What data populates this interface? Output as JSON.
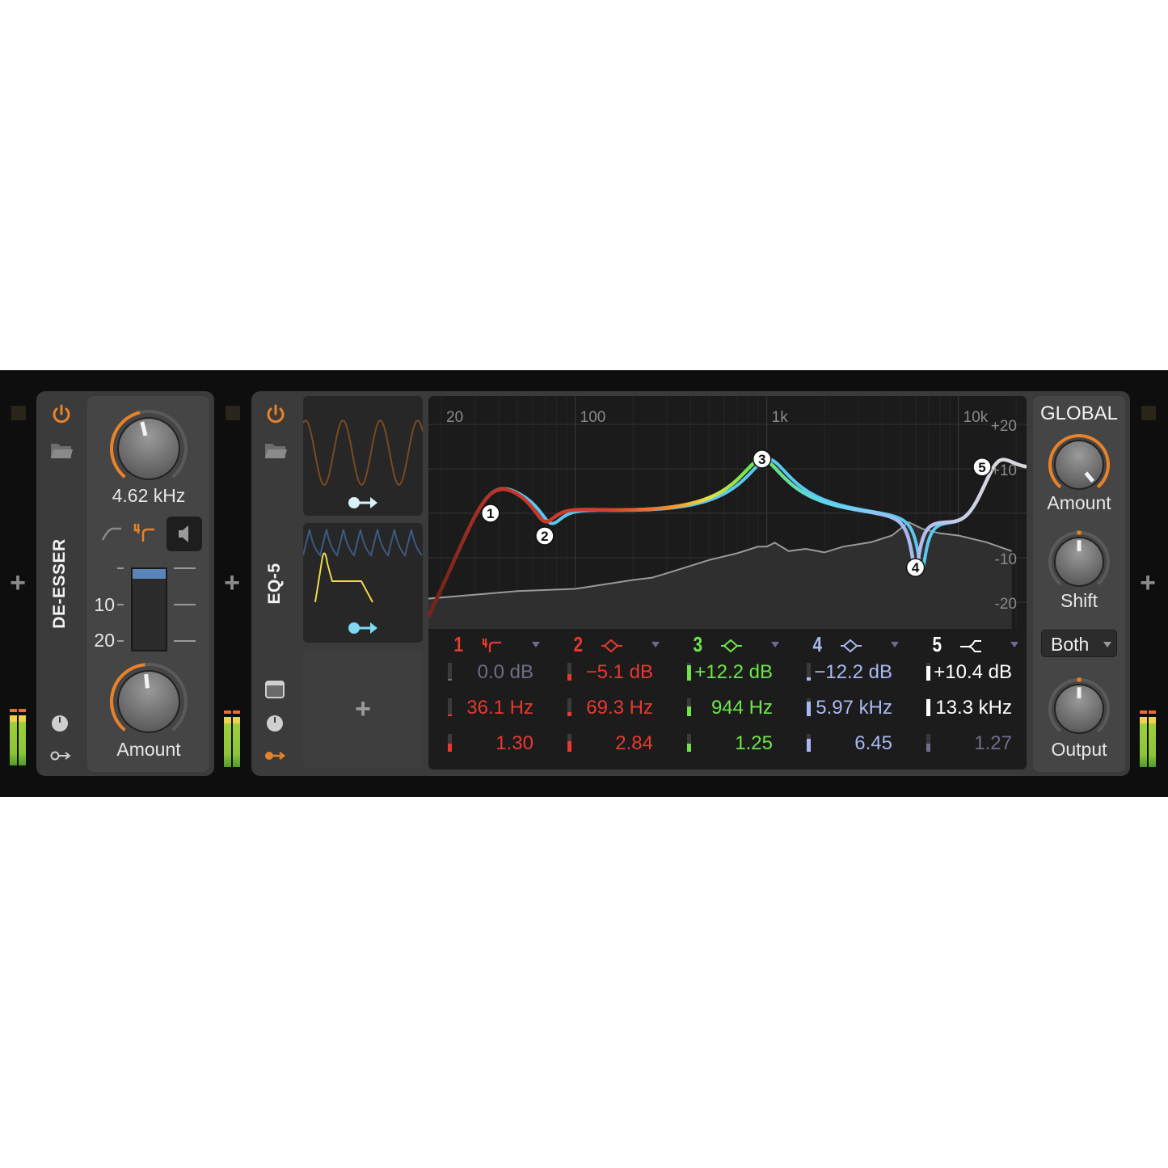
{
  "add_label": "+",
  "deesser": {
    "title": "DE-ESSER",
    "frequency": "4.62 kHz",
    "frequency_knob": 0.45,
    "amount_label": "Amount",
    "amount_knob": 0.48,
    "scale": [
      "10",
      "20"
    ],
    "gain_reduction_level": 0.12,
    "filter_modes": [
      "highpass",
      "4-pole-highpass"
    ],
    "active_filter_mode": "4-pole-highpass",
    "listen_icon": "speaker-icon"
  },
  "eq": {
    "title": "EQ-5",
    "freq_labels": [
      "20",
      "100",
      "1k",
      "10k"
    ],
    "db_labels": [
      "+20",
      "+10",
      "-10",
      "-20"
    ],
    "bands": [
      {
        "num": "1",
        "type": "highpass-4pole",
        "color": "#e8392e",
        "gain": "0.0 dB",
        "gain_color": "#6e6e86",
        "freq": "36.1 Hz",
        "q": "1.30",
        "q_color": "#e8392e",
        "levels": [
          0.0,
          0.08,
          0.45
        ]
      },
      {
        "num": "2",
        "type": "bell",
        "color": "#e8392e",
        "gain": "−5.1 dB",
        "gain_color": "#e8392e",
        "freq": "69.3 Hz",
        "q": "2.84",
        "q_color": "#e8392e",
        "levels": [
          0.35,
          0.25,
          0.6
        ]
      },
      {
        "num": "3",
        "type": "bell",
        "color": "#6ee64a",
        "gain": "+12.2 dB",
        "gain_color": "#6ee64a",
        "freq": "944 Hz",
        "q": "1.25",
        "q_color": "#6ee64a",
        "levels": [
          0.85,
          0.55,
          0.45
        ]
      },
      {
        "num": "4",
        "type": "bell",
        "color": "#aab8f2",
        "gain": "−12.2 dB",
        "gain_color": "#aab8f2",
        "freq": "5.97 kHz",
        "q": "6.45",
        "q_color": "#aab8f2",
        "levels": [
          0.2,
          0.8,
          0.75
        ]
      },
      {
        "num": "5",
        "type": "high-shelf",
        "color": "#ffffff",
        "gain": "+10.4 dB",
        "gain_color": "#ffffff",
        "freq": "13.3 kHz",
        "q": "1.27",
        "q_color": "#6e6e8e",
        "levels": [
          0.8,
          0.95,
          0.45
        ]
      }
    ]
  },
  "global": {
    "title": "GLOBAL",
    "amount_label": "Amount",
    "amount_knob": 1.0,
    "shift_label": "Shift",
    "shift_knob": 0.5,
    "mode": "Both",
    "output_label": "Output",
    "output_knob": 0.5
  },
  "colors": {
    "accent": "#e8822a",
    "background": "#0e0e0e",
    "device": "#3b3b3b"
  }
}
